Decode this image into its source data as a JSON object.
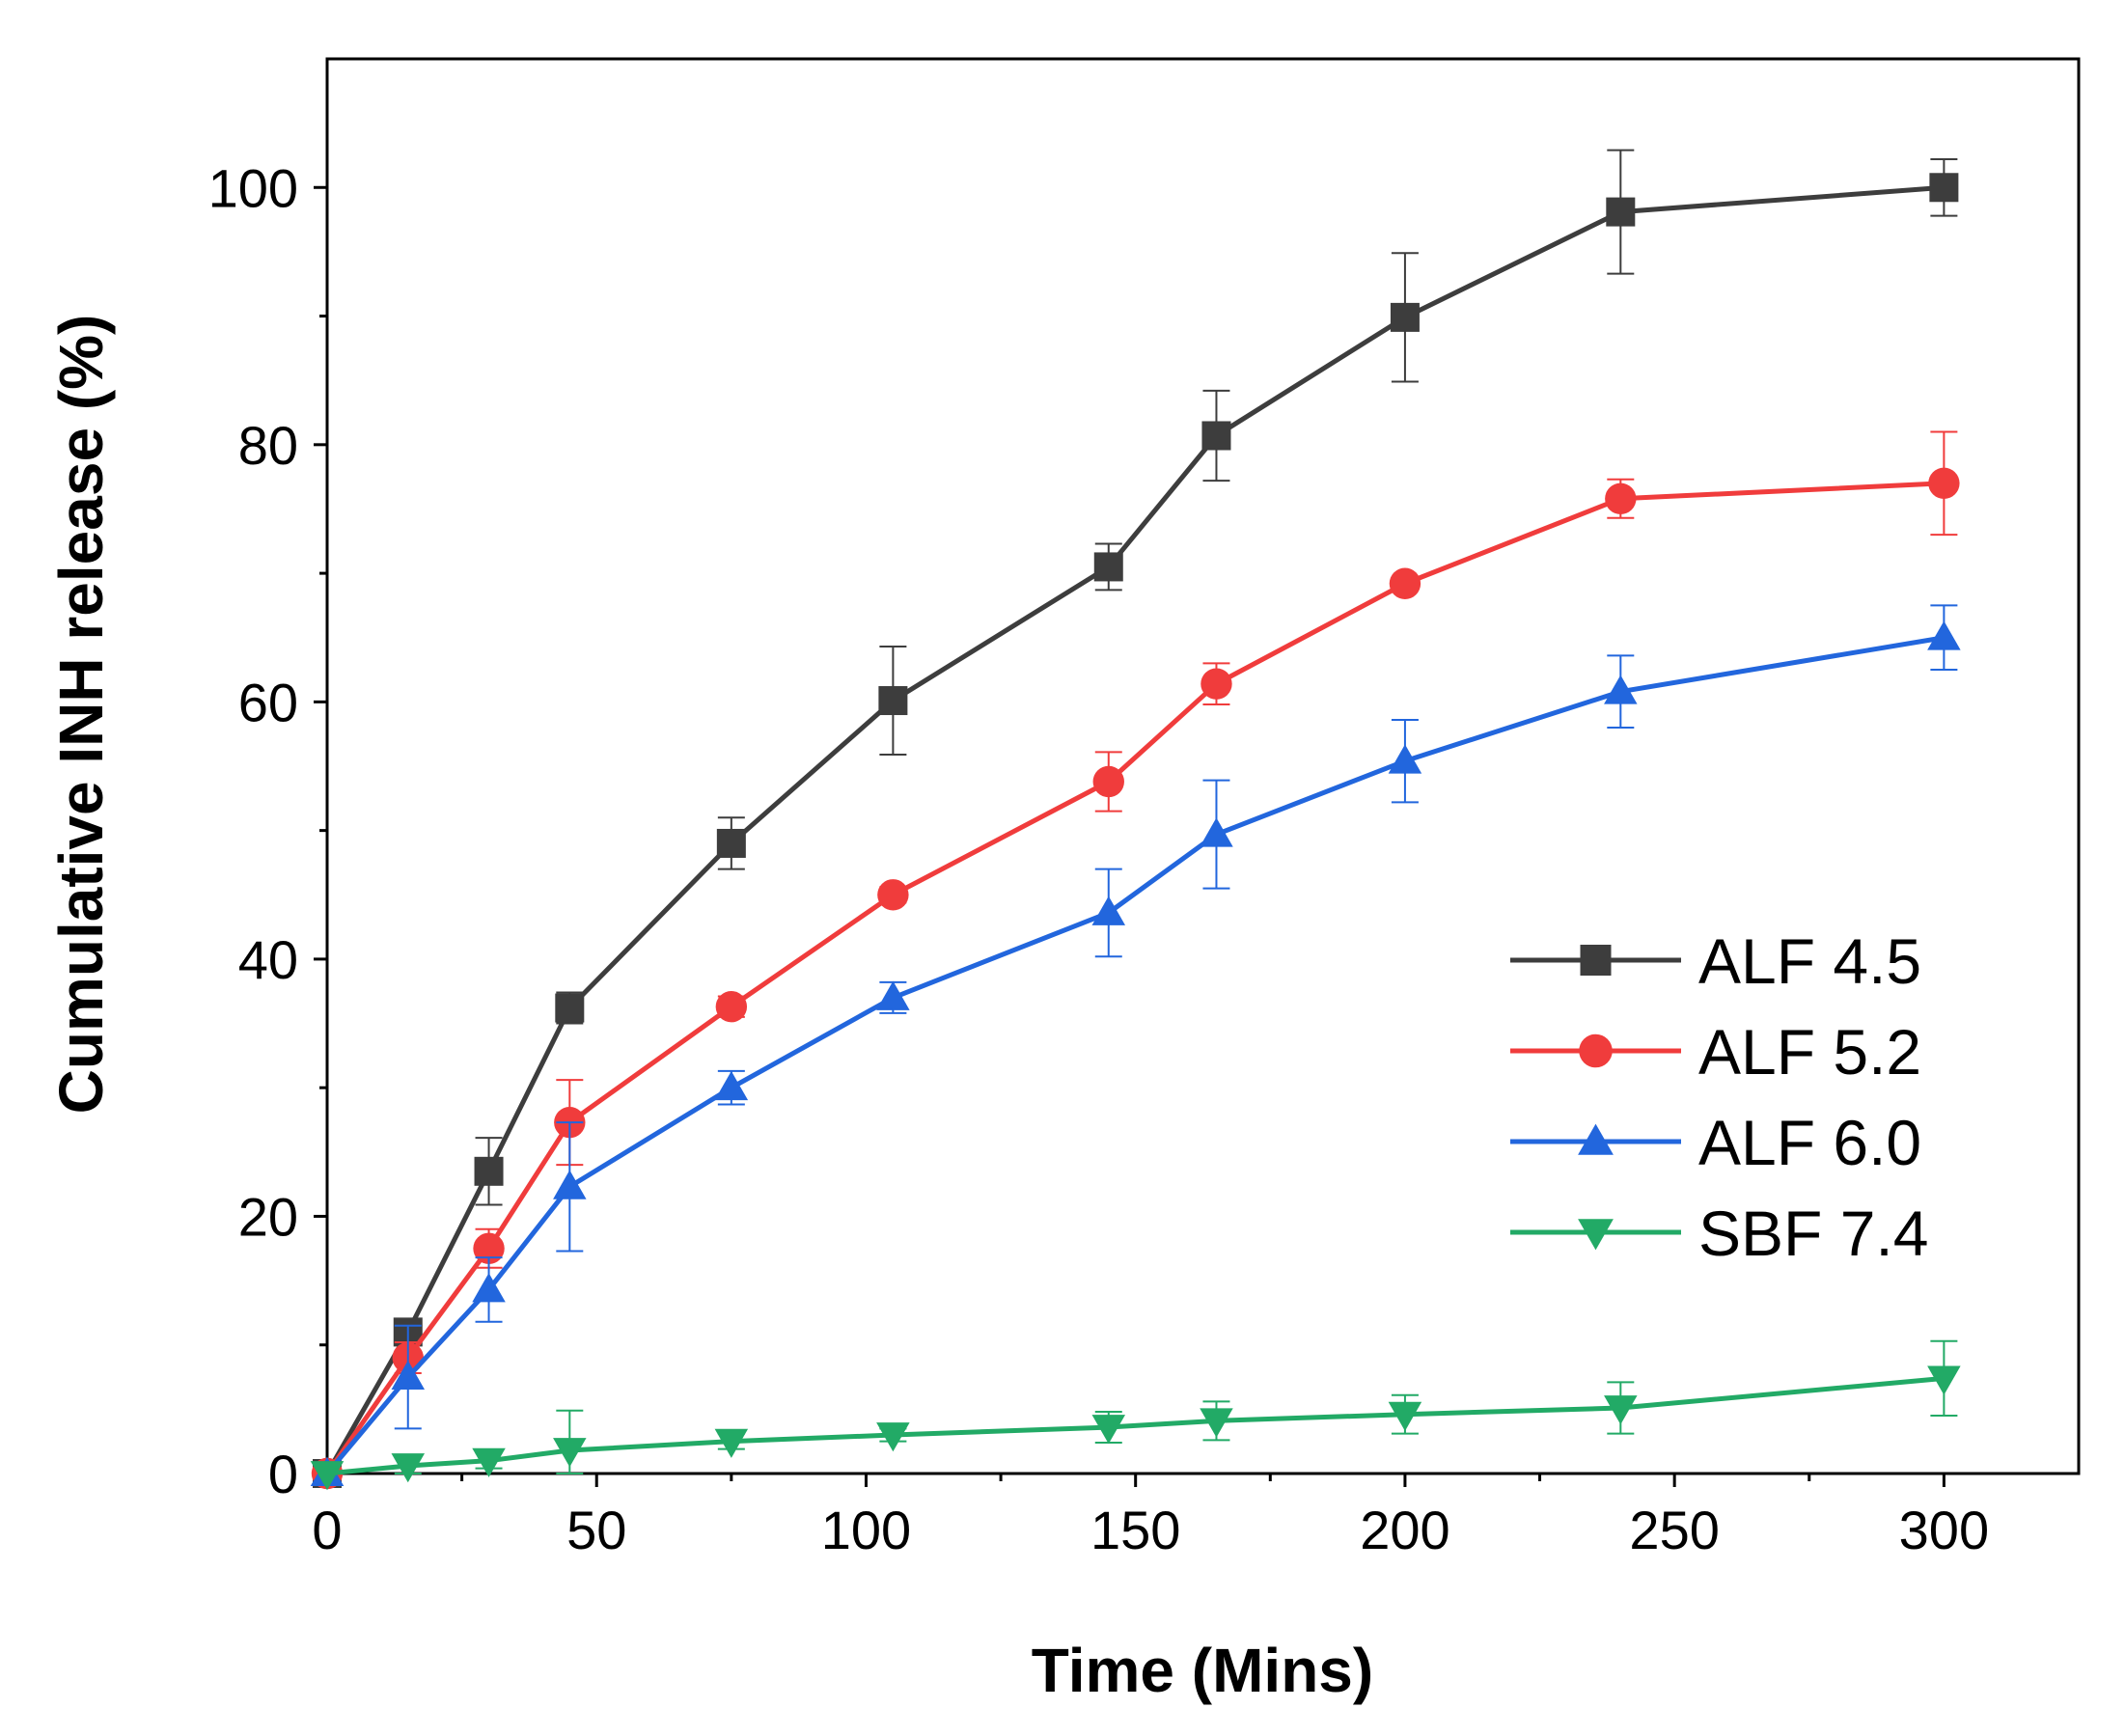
{
  "chart_data": {
    "type": "line",
    "title": "",
    "xlabel": "Time (Mins)",
    "ylabel": "Cumulative INH release (%)",
    "xlim": [
      0,
      325
    ],
    "ylim": [
      0,
      110
    ],
    "xticks": [
      0,
      50,
      100,
      150,
      200,
      250,
      300
    ],
    "xtick_labels": [
      "0",
      "50",
      "100",
      "150",
      "200",
      "250",
      "300"
    ],
    "yticks": [
      0,
      20,
      40,
      60,
      80,
      100
    ],
    "ytick_labels": [
      "0",
      "20",
      "40",
      "60",
      "80",
      "100"
    ],
    "x_minor_step": 25,
    "y_minor_step": 10,
    "grid": false,
    "legend_position": "center-right",
    "x": [
      0,
      15,
      30,
      45,
      75,
      105,
      145,
      165,
      200,
      240,
      300
    ],
    "series": [
      {
        "name": "ALF 4.5",
        "color": "#3d3d3d",
        "marker": "square",
        "values": [
          0,
          11,
          23.5,
          36.2,
          49,
          60.1,
          70.5,
          80.7,
          89.9,
          98.1,
          100
        ],
        "errors": [
          0,
          0.8,
          2.6,
          1.2,
          2.0,
          4.2,
          1.8,
          3.5,
          5.0,
          4.8,
          2.2
        ]
      },
      {
        "name": "ALF 5.2",
        "color": "#f03c3c",
        "marker": "circle",
        "values": [
          0,
          9.0,
          17.5,
          27.3,
          36.3,
          45.0,
          53.8,
          61.4,
          69.2,
          75.8,
          77.0
        ],
        "errors": [
          0,
          1.2,
          1.5,
          3.3,
          0.8,
          0.6,
          2.3,
          1.6,
          0.5,
          1.5,
          4.0
        ]
      },
      {
        "name": "ALF 6.0",
        "color": "#2266dd",
        "marker": "triangle-up",
        "values": [
          0,
          7.5,
          14.3,
          22.3,
          30.0,
          37.0,
          43.6,
          49.7,
          55.4,
          60.8,
          65.0
        ],
        "errors": [
          0,
          4.0,
          2.5,
          5.0,
          1.3,
          1.2,
          3.4,
          4.2,
          3.2,
          2.8,
          2.5
        ]
      },
      {
        "name": "SBF 7.4",
        "color": "#22aa66",
        "marker": "triangle-down",
        "values": [
          0,
          0.6,
          1.0,
          1.8,
          2.5,
          3.0,
          3.6,
          4.1,
          4.6,
          5.1,
          7.4
        ],
        "errors": [
          0,
          0.8,
          0.6,
          3.1,
          0.6,
          0.5,
          1.2,
          1.5,
          1.5,
          2.0,
          2.9
        ]
      }
    ]
  }
}
